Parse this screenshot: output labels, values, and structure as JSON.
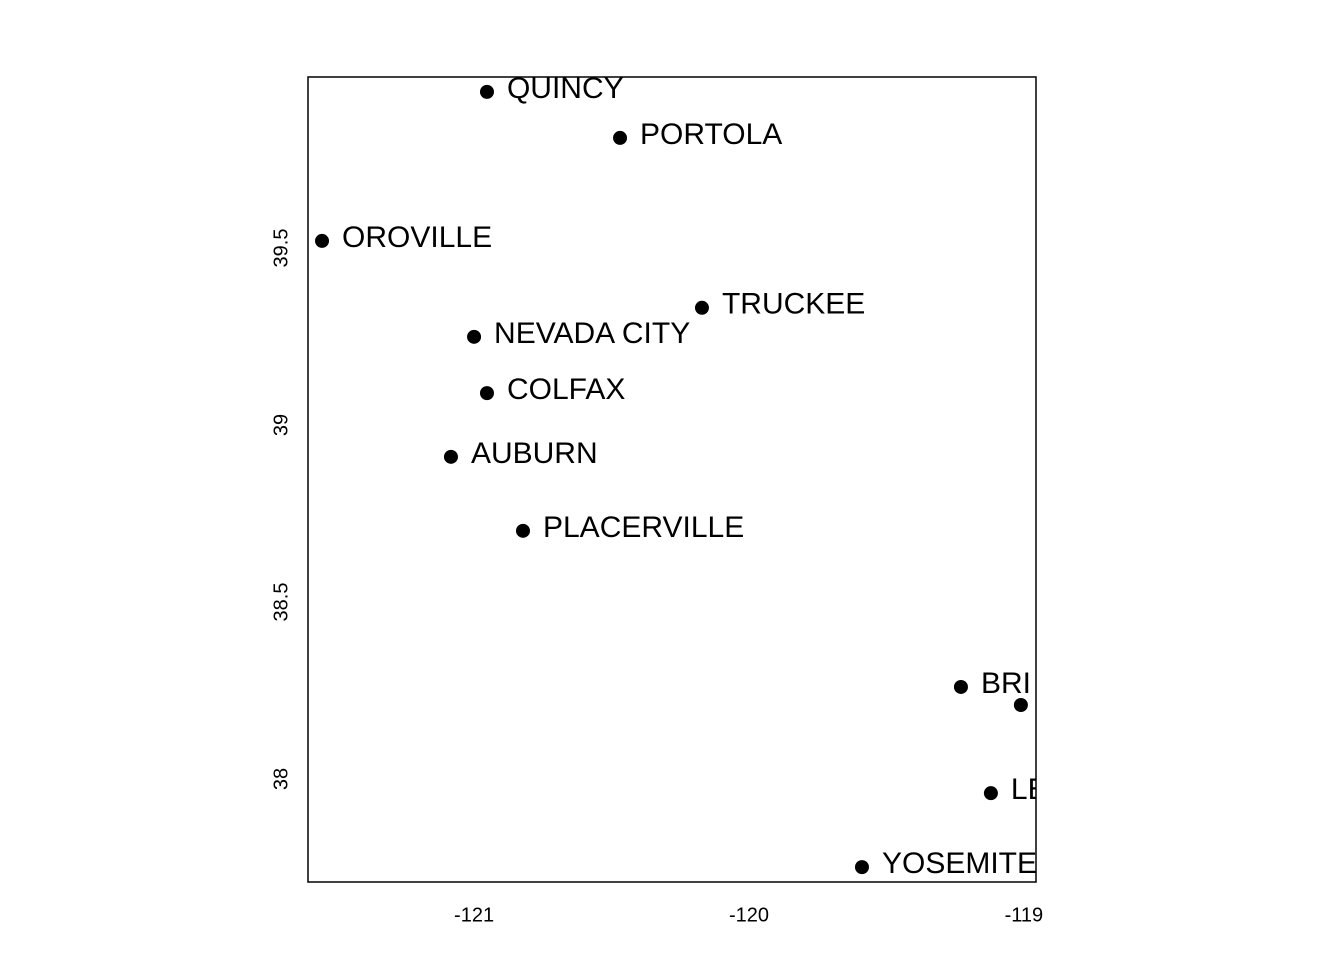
{
  "chart_data": {
    "type": "scatter",
    "x": [
      -120.953,
      -120.469,
      -121.553,
      -120.171,
      -121.0,
      -120.953,
      -121.084,
      -120.822,
      -119.229,
      -119.011,
      -119.12,
      -119.589
    ],
    "y": [
      39.941,
      39.811,
      39.52,
      39.331,
      39.249,
      39.09,
      38.91,
      38.701,
      38.26,
      38.209,
      37.96,
      37.751
    ],
    "labels": [
      "QUINCY",
      "PORTOLA",
      "OROVILLE",
      "TRUCKEE",
      "NEVADA CITY",
      "COLFAX",
      "AUBURN",
      "PLACERVILLE",
      "BRI",
      null,
      "LE",
      "YOSEMITE"
    ],
    "color": "#000000",
    "xlim": [
      -121.604,
      -118.956
    ],
    "ylim": [
      37.709,
      39.983
    ],
    "xticks": [
      -121,
      -120,
      -119
    ],
    "yticks": [
      38,
      38.5,
      39,
      39.5
    ]
  }
}
